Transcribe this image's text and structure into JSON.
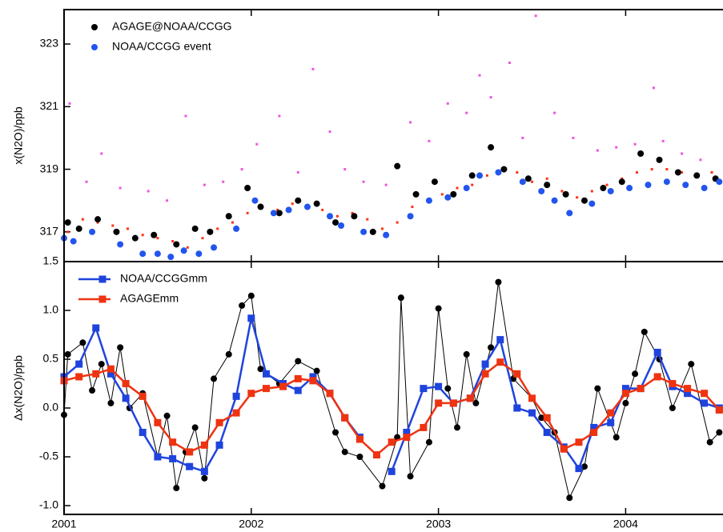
{
  "chart_data": [
    {
      "type": "scatter",
      "ylabel": "x(N2O)/ppb",
      "legend": "upper left",
      "xlim": [
        2001,
        2004.52
      ],
      "ylim": [
        316.05,
        324.1
      ],
      "yticks": [
        317,
        319,
        321,
        323
      ],
      "series": [
        {
          "color": "#ee55dd",
          "marker": "dot",
          "x": [
            2001.03,
            2001.12,
            2001.2,
            2001.3,
            2001.45,
            2001.55,
            2001.65,
            2001.75,
            2001.85,
            2001.95,
            2002.03,
            2002.15,
            2002.25,
            2002.33,
            2002.42,
            2002.5,
            2002.6,
            2002.72,
            2002.85,
            2002.95,
            2003.05,
            2003.15,
            2003.22,
            2003.28,
            2003.38,
            2003.45,
            2003.52,
            2003.62,
            2003.72,
            2003.85,
            2003.95,
            2004.05,
            2004.15,
            2004.2,
            2004.3,
            2004.4
          ],
          "values": [
            321.1,
            318.6,
            319.5,
            318.4,
            318.3,
            318.0,
            320.7,
            318.5,
            318.6,
            319.0,
            319.8,
            320.7,
            318.9,
            322.2,
            320.2,
            319.0,
            318.6,
            318.5,
            320.5,
            319.9,
            321.1,
            320.8,
            322.0,
            321.3,
            322.4,
            320.0,
            323.9,
            320.8,
            320.0,
            319.6,
            319.7,
            319.8,
            321.6,
            319.9,
            319.5,
            319.3
          ]
        },
        {
          "color": "#ff3311",
          "marker": "dot",
          "x": [
            2001.02,
            2001.1,
            2001.18,
            2001.26,
            2001.34,
            2001.42,
            2001.5,
            2001.58,
            2001.66,
            2001.74,
            2001.82,
            2001.9,
            2001.98,
            2002.06,
            2002.14,
            2002.22,
            2002.3,
            2002.38,
            2002.46,
            2002.54,
            2002.62,
            2002.7,
            2002.78,
            2002.86,
            2002.94,
            2003.02,
            2003.1,
            2003.18,
            2003.26,
            2003.34,
            2003.42,
            2003.5,
            2003.58,
            2003.66,
            2003.74,
            2003.82,
            2003.9,
            2003.98,
            2004.06,
            2004.14,
            2004.22,
            2004.3,
            2004.38,
            2004.46
          ],
          "values": [
            317.0,
            317.4,
            317.3,
            317.2,
            317.1,
            316.9,
            316.8,
            316.7,
            316.5,
            316.8,
            317.1,
            317.3,
            317.6,
            317.8,
            317.7,
            317.9,
            317.8,
            317.7,
            317.5,
            317.6,
            317.4,
            317.1,
            317.3,
            317.8,
            318.0,
            318.2,
            318.4,
            318.5,
            318.8,
            319.0,
            318.9,
            318.6,
            318.7,
            318.3,
            318.1,
            318.3,
            318.5,
            318.7,
            318.9,
            319.0,
            319.0,
            318.9,
            318.8,
            318.9
          ]
        },
        {
          "name": "AGAGE@NOAA/CCGG",
          "color": "#000000",
          "marker": "circle",
          "x": [
            2001.02,
            2001.08,
            2001.18,
            2001.28,
            2001.38,
            2001.48,
            2001.6,
            2001.7,
            2001.78,
            2001.88,
            2001.98,
            2002.05,
            2002.15,
            2002.25,
            2002.35,
            2002.45,
            2002.55,
            2002.65,
            2002.78,
            2002.88,
            2002.98,
            2003.08,
            2003.18,
            2003.28,
            2003.35,
            2003.48,
            2003.58,
            2003.68,
            2003.78,
            2003.88,
            2003.98,
            2004.08,
            2004.18,
            2004.28,
            2004.38,
            2004.48
          ],
          "values": [
            317.3,
            317.1,
            317.4,
            317.0,
            316.8,
            316.9,
            316.6,
            317.1,
            317.0,
            317.5,
            318.4,
            317.8,
            317.6,
            318.0,
            317.9,
            317.3,
            317.5,
            317.0,
            319.1,
            318.2,
            318.6,
            318.2,
            318.8,
            319.7,
            319.0,
            318.7,
            318.5,
            318.2,
            318.0,
            318.4,
            318.6,
            319.5,
            319.3,
            318.9,
            318.8,
            318.7
          ]
        },
        {
          "name": "NOAA/CCGG event",
          "color": "#2255ee",
          "marker": "circle",
          "x": [
            2001.0,
            2001.05,
            2001.15,
            2001.3,
            2001.42,
            2001.5,
            2001.57,
            2001.64,
            2001.72,
            2001.8,
            2001.92,
            2002.02,
            2002.12,
            2002.2,
            2002.3,
            2002.42,
            2002.48,
            2002.6,
            2002.72,
            2002.85,
            2002.95,
            2003.05,
            2003.15,
            2003.22,
            2003.32,
            2003.45,
            2003.55,
            2003.62,
            2003.7,
            2003.82,
            2003.92,
            2004.02,
            2004.12,
            2004.22,
            2004.32,
            2004.42,
            2004.5
          ],
          "values": [
            316.8,
            316.7,
            317.0,
            316.6,
            316.3,
            316.3,
            316.2,
            316.4,
            316.3,
            316.5,
            317.1,
            318.0,
            317.6,
            317.7,
            317.8,
            317.5,
            317.2,
            317.0,
            316.9,
            317.5,
            318.0,
            318.1,
            318.4,
            318.8,
            318.9,
            318.6,
            318.3,
            318.0,
            317.6,
            317.9,
            318.3,
            318.4,
            318.5,
            318.6,
            318.5,
            318.4,
            318.6
          ]
        }
      ]
    },
    {
      "type": "line",
      "ylabel": "Δx(N2O)/ppb",
      "legend": "upper left",
      "xlim": [
        2001,
        2004.52
      ],
      "ylim": [
        -1.09,
        1.5
      ],
      "xticks": [
        2001,
        2002,
        2003,
        2004
      ],
      "yticks": [
        {
          "value": -1,
          "label": "-1.0"
        },
        {
          "value": -0.5,
          "label": "-0.5"
        },
        {
          "value": 0,
          "label": "0.0"
        },
        {
          "value": 0.5,
          "label": "0.5"
        },
        {
          "value": 1,
          "label": "1.0"
        },
        {
          "value": 1.5,
          "label": "1.5"
        }
      ],
      "series": [
        {
          "color": "#000000",
          "marker": "circle",
          "x": [
            2001.0,
            2001.02,
            2001.1,
            2001.15,
            2001.2,
            2001.25,
            2001.3,
            2001.35,
            2001.42,
            2001.5,
            2001.55,
            2001.6,
            2001.65,
            2001.7,
            2001.75,
            2001.8,
            2001.88,
            2001.95,
            2002.0,
            2002.05,
            2002.15,
            2002.25,
            2002.35,
            2002.45,
            2002.5,
            2002.58,
            2002.7,
            2002.78,
            2002.8,
            2002.85,
            2002.95,
            2003.0,
            2003.05,
            2003.1,
            2003.15,
            2003.2,
            2003.28,
            2003.32,
            2003.4,
            2003.5,
            2003.55,
            2003.62,
            2003.7,
            2003.78,
            2003.85,
            2003.95,
            2004.0,
            2004.05,
            2004.1,
            2004.18,
            2004.25,
            2004.35,
            2004.45,
            2004.5
          ],
          "values": [
            -0.07,
            0.55,
            0.67,
            0.18,
            0.45,
            0.05,
            0.62,
            0.0,
            0.15,
            -0.5,
            -0.08,
            -0.82,
            -0.45,
            -0.2,
            -0.72,
            0.3,
            0.55,
            1.05,
            1.15,
            0.4,
            0.25,
            0.48,
            0.38,
            -0.25,
            -0.45,
            -0.5,
            -0.8,
            -0.3,
            1.13,
            -0.7,
            -0.35,
            1.02,
            0.2,
            -0.2,
            0.55,
            0.05,
            0.62,
            1.29,
            0.3,
            0.1,
            -0.1,
            -0.25,
            -0.92,
            -0.6,
            0.2,
            -0.3,
            0.05,
            0.35,
            0.78,
            0.5,
            0.0,
            0.45,
            -0.35,
            -0.25
          ]
        },
        {
          "name": "NOAA/CCGGmm",
          "color": "#1f44dd",
          "marker": "square",
          "x": [
            2001.0,
            2001.08,
            2001.17,
            2001.25,
            2001.33,
            2001.42,
            2001.5,
            2001.58,
            2001.67,
            2001.75,
            2001.83,
            2001.92,
            2002.0,
            2002.08,
            2002.17,
            2002.25,
            2002.33,
            2002.42,
            2002.5,
            2002.58,
            2002.67,
            2002.75,
            2002.83,
            2002.92,
            2003.0,
            2003.08,
            2003.17,
            2003.25,
            2003.33,
            2003.42,
            2003.5,
            2003.58,
            2003.67,
            2003.75,
            2003.83,
            2003.92,
            2004.0,
            2004.08,
            2004.17,
            2004.25,
            2004.33,
            2004.42,
            2004.5
          ],
          "values": [
            0.32,
            0.45,
            0.82,
            0.35,
            0.1,
            -0.25,
            -0.5,
            -0.52,
            -0.6,
            -0.65,
            -0.38,
            0.12,
            0.92,
            0.35,
            0.25,
            0.18,
            0.32,
            0.15,
            -0.1,
            -0.3,
            null,
            -0.65,
            -0.25,
            0.2,
            0.22,
            0.05,
            0.1,
            0.45,
            0.7,
            0.0,
            -0.05,
            -0.25,
            -0.4,
            -0.62,
            -0.2,
            -0.15,
            0.2,
            0.2,
            0.57,
            0.22,
            0.15,
            0.05,
            0.0
          ]
        },
        {
          "name": "AGAGEmm",
          "color": "#ee3311",
          "marker": "square",
          "x": [
            2001.0,
            2001.08,
            2001.17,
            2001.25,
            2001.33,
            2001.42,
            2001.5,
            2001.58,
            2001.67,
            2001.75,
            2001.83,
            2001.92,
            2002.0,
            2002.08,
            2002.17,
            2002.25,
            2002.33,
            2002.42,
            2002.5,
            2002.58,
            2002.67,
            2002.75,
            2002.83,
            2002.92,
            2003.0,
            2003.08,
            2003.17,
            2003.25,
            2003.33,
            2003.42,
            2003.5,
            2003.58,
            2003.67,
            2003.75,
            2003.83,
            2003.92,
            2004.0,
            2004.08,
            2004.17,
            2004.25,
            2004.33,
            2004.42,
            2004.5
          ],
          "values": [
            0.28,
            0.32,
            0.35,
            0.4,
            0.25,
            0.12,
            -0.15,
            -0.35,
            -0.45,
            -0.38,
            -0.15,
            -0.05,
            0.15,
            0.2,
            0.22,
            0.3,
            0.28,
            0.15,
            -0.1,
            -0.32,
            -0.48,
            -0.35,
            -0.3,
            -0.2,
            0.05,
            0.05,
            0.1,
            0.35,
            0.47,
            0.35,
            0.1,
            -0.1,
            -0.42,
            -0.35,
            -0.25,
            -0.05,
            0.15,
            0.2,
            0.32,
            0.25,
            0.2,
            0.15,
            -0.02
          ]
        }
      ]
    }
  ]
}
